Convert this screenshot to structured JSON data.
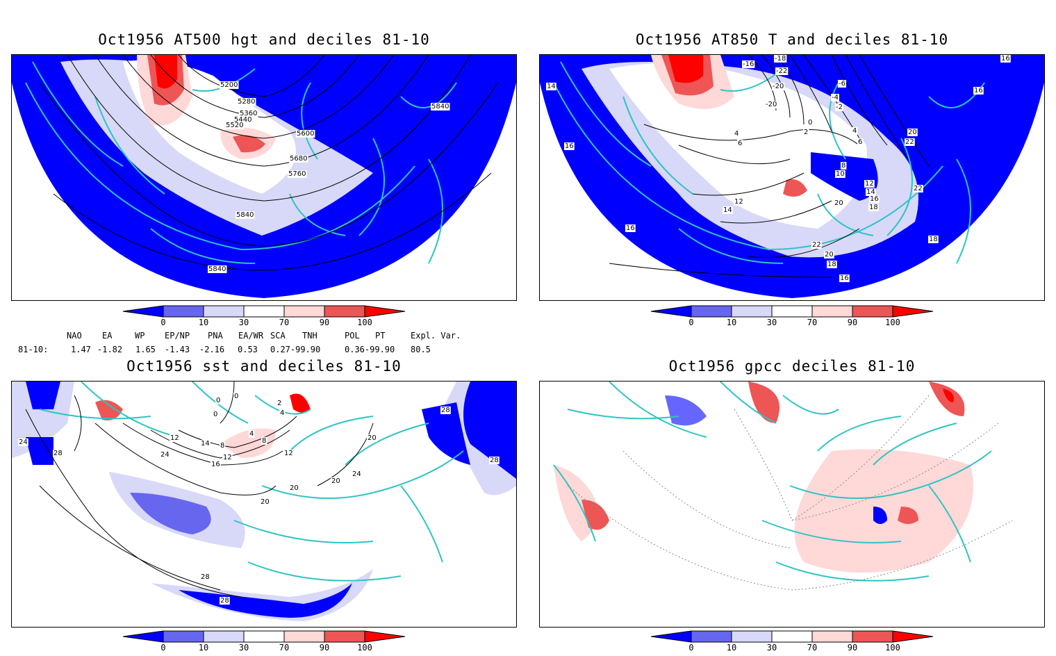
{
  "panels": [
    {
      "id": "p1",
      "title": "Oct1956 AT500 hgt and deciles 81-10",
      "contour_labels": [
        "5200",
        "5280",
        "5360",
        "5440",
        "5520",
        "5600",
        "5680",
        "5760",
        "5840",
        "5840",
        "5840"
      ]
    },
    {
      "id": "p2",
      "title": "Oct1956 AT850 T and deciles 81-10",
      "contour_labels": [
        "-16",
        "-18",
        "-22",
        "-20",
        "-20",
        "-6",
        "-4",
        "-2",
        "0",
        "2",
        "4",
        "4",
        "6",
        "6",
        "8",
        "10",
        "12",
        "12",
        "14",
        "14",
        "14",
        "16",
        "16",
        "16",
        "16",
        "16",
        "16",
        "18",
        "18",
        "18",
        "20",
        "20",
        "20",
        "22",
        "22",
        "22"
      ]
    },
    {
      "id": "p3",
      "title": "Oct1956 sst and deciles 81-10",
      "contour_labels": [
        "0",
        "0",
        "0",
        "2",
        "4",
        "4",
        "8",
        "8",
        "12",
        "12",
        "12",
        "14",
        "16",
        "20",
        "20",
        "20",
        "20",
        "24",
        "24",
        "24",
        "28",
        "28",
        "28",
        "28",
        "28"
      ]
    },
    {
      "id": "p4",
      "title": "Oct1956 gpcc deciles 81-10",
      "contour_labels": []
    }
  ],
  "colorbar": {
    "ticks": [
      "0",
      "10",
      "30",
      "70",
      "90",
      "100"
    ],
    "colors": [
      "#0000ff",
      "#6666ee",
      "#d8d8f8",
      "#ffffff",
      "#ffd8d8",
      "#ee5555",
      "#ff0000"
    ]
  },
  "indices": {
    "row_label": "81-10:",
    "headers": [
      "NAO",
      "EA",
      "WP",
      "EP/NP",
      "PNA",
      "EA/WR",
      "SCA",
      "TNH",
      "POL",
      "PT",
      "Expl. Var."
    ],
    "values": [
      "1.47",
      "-1.82",
      "1.65",
      "-1.43",
      "-2.16",
      "0.53",
      "0.27-99.90",
      "0.36-99.90",
      "80.5"
    ]
  },
  "colors": {
    "coast": "#2ec4c4",
    "contour": "#000000",
    "grid": "#888888"
  }
}
